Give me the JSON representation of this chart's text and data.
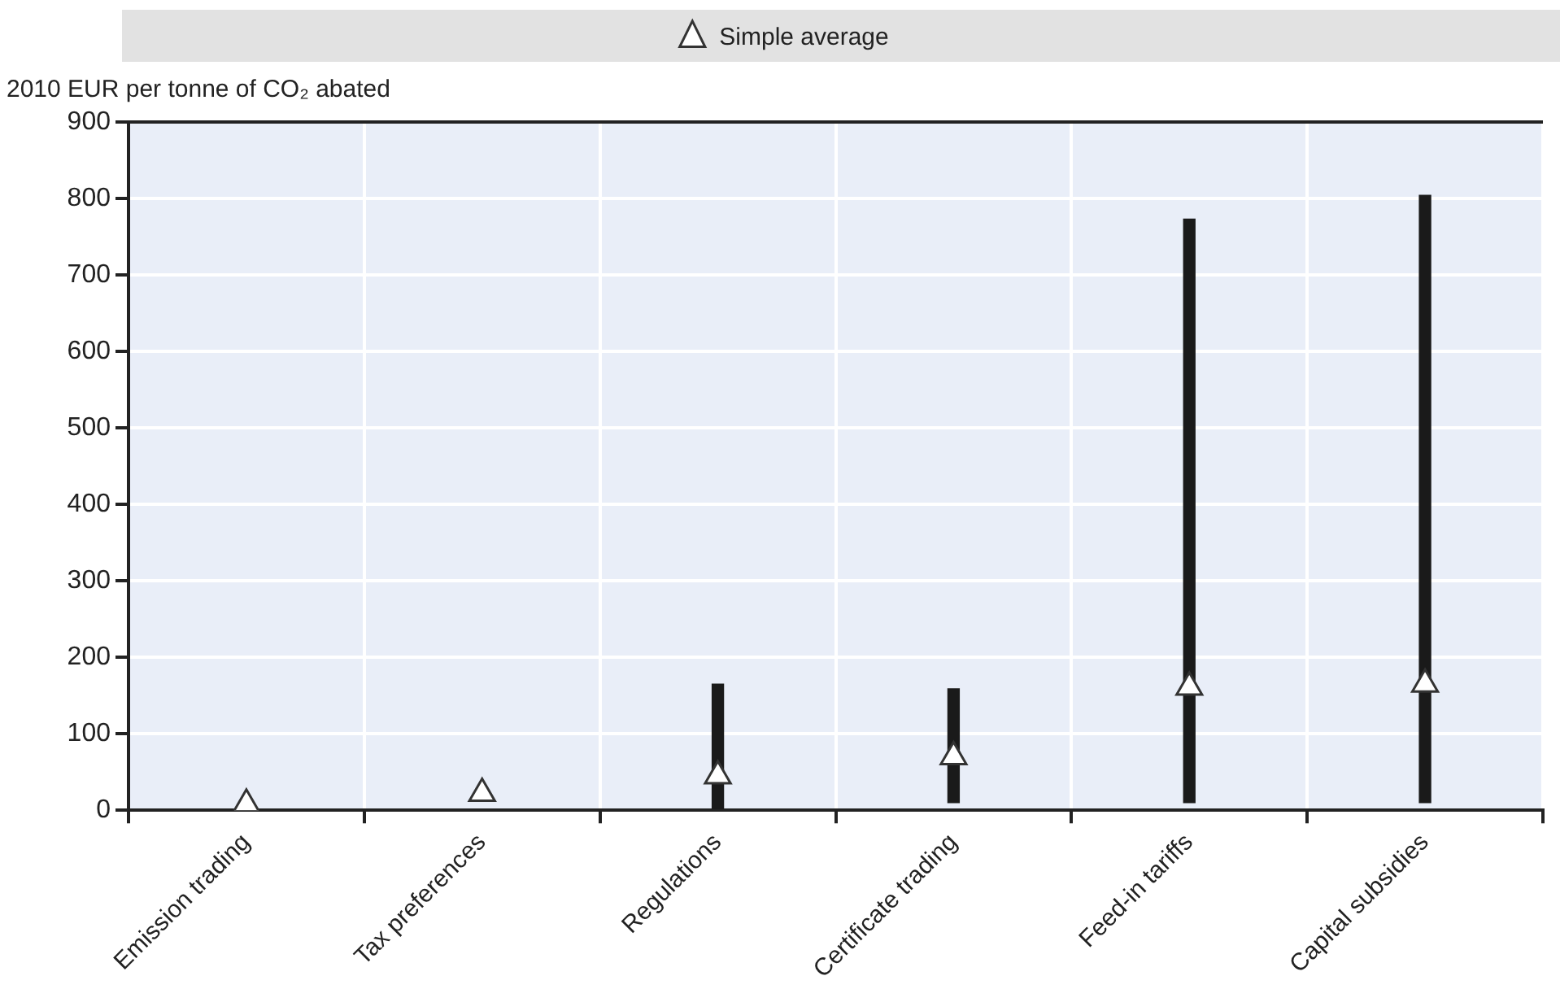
{
  "chart_data": {
    "type": "bar",
    "ylabel": "2010 EUR per tonne of CO₂ abated",
    "categories": [
      "Emission trading",
      "Tax preferences",
      "Regulations",
      "Certificate trading",
      "Feed-in tariffs",
      "Capital subsidies"
    ],
    "series": [
      {
        "color": "#1a1a1a",
        "base": [
          null,
          null,
          0,
          10,
          10,
          10
        ],
        "values": [
          null,
          null,
          165,
          149,
          763,
          794
        ]
      },
      {
        "type": "scatter",
        "name": "Simple average",
        "color": "#333333",
        "marker": "triangle",
        "values": [
          8,
          22,
          45,
          70,
          161,
          165
        ]
      }
    ],
    "ylim": [
      0,
      900
    ],
    "yticks": [
      0,
      100,
      200,
      300,
      400,
      500,
      600,
      700,
      800,
      900
    ],
    "grid": true,
    "legend": "top"
  }
}
